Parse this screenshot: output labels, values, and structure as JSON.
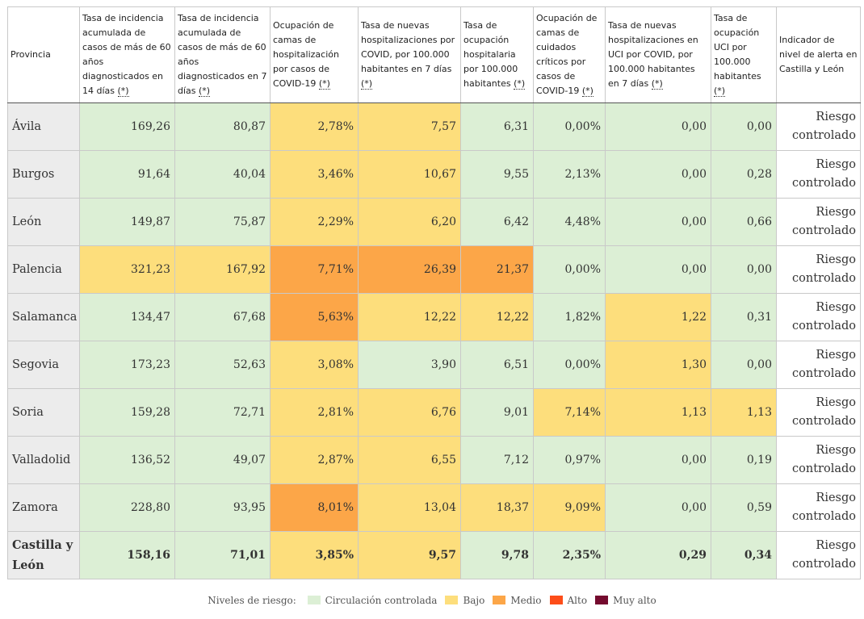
{
  "columns": [
    {
      "text": "Provincia",
      "ast": false
    },
    {
      "text": "Tasa de incidencia acumulada de casos de más de 60 años diagnosticados en 14 días",
      "ast": true
    },
    {
      "text": "Tasa de incidencia acumulada de casos de más de 60 años diagnosticados en 7 días",
      "ast": true
    },
    {
      "text": "Ocupación de camas de hospitalización por casos de COVID-19",
      "ast": true
    },
    {
      "text": "Tasa de nuevas hospitalizaciones por COVID, por 100.000 habitantes en 7 días",
      "ast": true
    },
    {
      "text": "Tasa de ocupación hospitalaria por 100.000 habitantes",
      "ast": true
    },
    {
      "text": "Ocupación de camas de cuidados críticos por casos de COVID-19",
      "ast": true
    },
    {
      "text": "Tasa de nuevas hospitalizaciones en UCI por COVID, por 100.000 habitantes en 7 días",
      "ast": true
    },
    {
      "text": "Tasa de ocupación UCI por 100.000 habitantes",
      "ast": true
    },
    {
      "text": "Indicador de nivel de alerta en Castilla y León",
      "ast": false
    }
  ],
  "asterisk_label": "(*)",
  "rows": [
    {
      "province": "Ávila",
      "values": [
        "169,26",
        "80,87",
        "2,78%",
        "7,57",
        "6,31",
        "0,00%",
        "0,00",
        "0,00"
      ],
      "levels": [
        "c",
        "c",
        "b",
        "b",
        "c",
        "c",
        "c",
        "c"
      ],
      "level_line1": "Riesgo",
      "level_line2": "controlado"
    },
    {
      "province": "Burgos",
      "values": [
        "91,64",
        "40,04",
        "3,46%",
        "10,67",
        "9,55",
        "2,13%",
        "0,00",
        "0,28"
      ],
      "levels": [
        "c",
        "c",
        "b",
        "b",
        "c",
        "c",
        "c",
        "c"
      ],
      "level_line1": "Riesgo",
      "level_line2": "controlado"
    },
    {
      "province": "León",
      "values": [
        "149,87",
        "75,87",
        "2,29%",
        "6,20",
        "6,42",
        "4,48%",
        "0,00",
        "0,66"
      ],
      "levels": [
        "c",
        "c",
        "b",
        "b",
        "c",
        "c",
        "c",
        "c"
      ],
      "level_line1": "Riesgo",
      "level_line2": "controlado"
    },
    {
      "province": "Palencia",
      "values": [
        "321,23",
        "167,92",
        "7,71%",
        "26,39",
        "21,37",
        "0,00%",
        "0,00",
        "0,00"
      ],
      "levels": [
        "b",
        "b",
        "m",
        "m",
        "m",
        "c",
        "c",
        "c"
      ],
      "level_line1": "Riesgo",
      "level_line2": "controlado"
    },
    {
      "province": "Salamanca",
      "values": [
        "134,47",
        "67,68",
        "5,63%",
        "12,22",
        "12,22",
        "1,82%",
        "1,22",
        "0,31"
      ],
      "levels": [
        "c",
        "c",
        "m",
        "b",
        "b",
        "c",
        "b",
        "c"
      ],
      "level_line1": "Riesgo",
      "level_line2": "controlado"
    },
    {
      "province": "Segovia",
      "values": [
        "173,23",
        "52,63",
        "3,08%",
        "3,90",
        "6,51",
        "0,00%",
        "1,30",
        "0,00"
      ],
      "levels": [
        "c",
        "c",
        "b",
        "c",
        "c",
        "c",
        "b",
        "c"
      ],
      "level_line1": "Riesgo",
      "level_line2": "controlado"
    },
    {
      "province": "Soria",
      "values": [
        "159,28",
        "72,71",
        "2,81%",
        "6,76",
        "9,01",
        "7,14%",
        "1,13",
        "1,13"
      ],
      "levels": [
        "c",
        "c",
        "b",
        "b",
        "c",
        "b",
        "b",
        "b"
      ],
      "level_line1": "Riesgo",
      "level_line2": "controlado"
    },
    {
      "province": "Valladolid",
      "values": [
        "136,52",
        "49,07",
        "2,87%",
        "6,55",
        "7,12",
        "0,97%",
        "0,00",
        "0,19"
      ],
      "levels": [
        "c",
        "c",
        "b",
        "b",
        "c",
        "c",
        "c",
        "c"
      ],
      "level_line1": "Riesgo",
      "level_line2": "controlado"
    },
    {
      "province": "Zamora",
      "values": [
        "228,80",
        "93,95",
        "8,01%",
        "13,04",
        "18,37",
        "9,09%",
        "0,00",
        "0,59"
      ],
      "levels": [
        "c",
        "c",
        "m",
        "b",
        "b",
        "b",
        "c",
        "c"
      ],
      "level_line1": "Riesgo",
      "level_line2": "controlado"
    }
  ],
  "total": {
    "province": "Castilla y León",
    "values": [
      "158,16",
      "71,01",
      "3,85%",
      "9,57",
      "9,78",
      "2,35%",
      "0,29",
      "0,34"
    ],
    "levels": [
      "c",
      "c",
      "b",
      "b",
      "c",
      "c",
      "c",
      "c"
    ],
    "level_line1": "Riesgo",
    "level_line2": "controlado"
  },
  "legend": {
    "title": "Niveles de riesgo:",
    "items": [
      {
        "key": "c",
        "label": "Circulación controlada",
        "color": "#dcefd5"
      },
      {
        "key": "b",
        "label": "Bajo",
        "color": "#fdde7c"
      },
      {
        "key": "m",
        "label": "Medio",
        "color": "#fca648"
      },
      {
        "key": "a",
        "label": "Alto",
        "color": "#fd4d19"
      },
      {
        "key": "ma",
        "label": "Muy alto",
        "color": "#740a2e"
      }
    ]
  }
}
